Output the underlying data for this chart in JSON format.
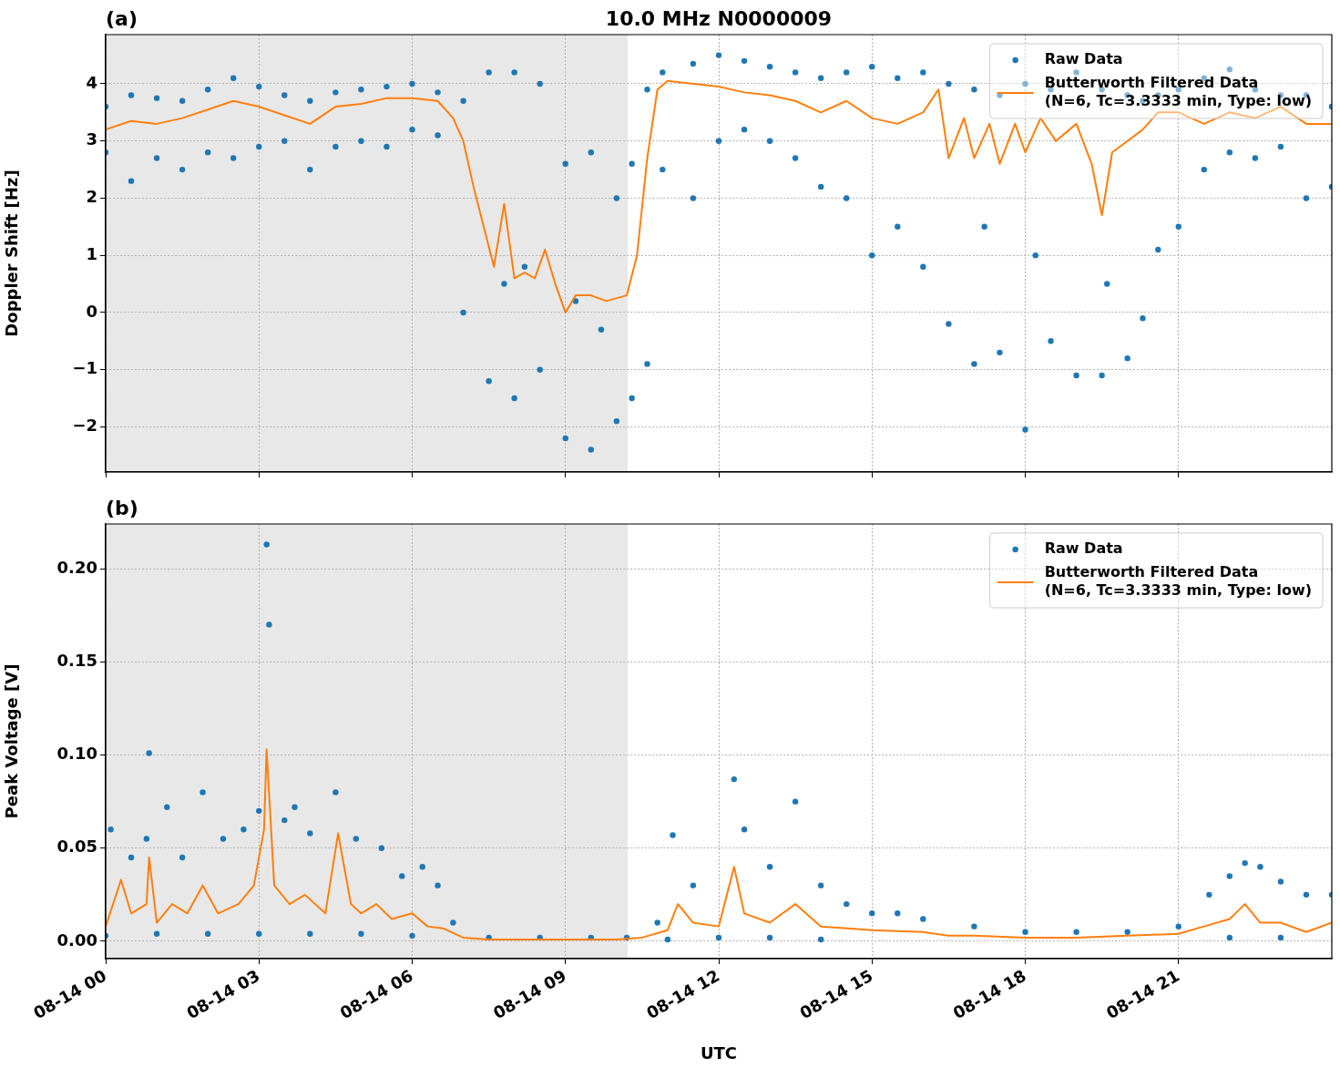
{
  "chart_data": [
    {
      "type": "scatter",
      "title": "10.0 MHz N0000009",
      "ylabel": "Doppler Shift [Hz]",
      "annotations": [
        "(a)"
      ],
      "xlim": [
        "--08-14T00:00",
        "--08-15T00:00"
      ],
      "xticks": [
        {
          "value": "--08-14T00:00",
          "label": null
        },
        {
          "value": "--08-14T03:00",
          "label": null
        },
        {
          "value": "--08-14T06:00",
          "label": null
        },
        {
          "value": "--08-14T09:00",
          "label": null
        },
        {
          "value": "--08-14T12:00",
          "label": null
        },
        {
          "value": "--08-14T15:00",
          "label": null
        },
        {
          "value": "--08-14T18:00",
          "label": null
        },
        {
          "value": "--08-14T21:00",
          "label": null
        }
      ],
      "ylim": [
        -2.79,
        4.86
      ],
      "yticks": [
        {
          "value": -2,
          "label": "−2"
        },
        {
          "value": -1,
          "label": "−1"
        },
        0,
        1,
        2,
        3,
        4
      ],
      "tick_labels": "y",
      "grid": true,
      "legend": "top right",
      "bands": [
        {
          "axis": "x",
          "from": "--08-14T00:00",
          "to": "--08-14T10:13",
          "color": "#e8e8e8"
        }
      ],
      "series": [
        {
          "name": "Raw Data",
          "type": "scatter",
          "marker": "circle",
          "color": "#1f77b4",
          "x": [
            "--08-14T00:00",
            "--08-14T00:00",
            "--08-14T00:30",
            "--08-14T00:30",
            "--08-14T01:00",
            "--08-14T01:00",
            "--08-14T01:30",
            "--08-14T01:30",
            "--08-14T02:00",
            "--08-14T02:00",
            "--08-14T02:30",
            "--08-14T02:30",
            "--08-14T03:00",
            "--08-14T03:00",
            "--08-14T03:30",
            "--08-14T03:30",
            "--08-14T04:00",
            "--08-14T04:00",
            "--08-14T04:30",
            "--08-14T04:30",
            "--08-14T05:00",
            "--08-14T05:00",
            "--08-14T05:30",
            "--08-14T05:30",
            "--08-14T06:00",
            "--08-14T06:00",
            "--08-14T06:30",
            "--08-14T06:30",
            "--08-14T07:00",
            "--08-14T07:00",
            "--08-14T07:30",
            "--08-14T07:30",
            "--08-14T08:00",
            "--08-14T08:00",
            "--08-14T08:30",
            "--08-14T08:30",
            "--08-14T09:00",
            "--08-14T09:00",
            "--08-14T09:30",
            "--08-14T09:30",
            "--08-14T10:00",
            "--08-14T10:00",
            "--08-14T10:18",
            "--08-14T10:18",
            "--08-14T10:36",
            "--08-14T10:36",
            "--08-14T10:54",
            "--08-14T10:54",
            "--08-14T11:30",
            "--08-14T11:30",
            "--08-14T12:00",
            "--08-14T12:00",
            "--08-14T12:30",
            "--08-14T12:30",
            "--08-14T13:00",
            "--08-14T13:00",
            "--08-14T13:30",
            "--08-14T13:30",
            "--08-14T14:00",
            "--08-14T14:00",
            "--08-14T14:30",
            "--08-14T14:30",
            "--08-14T15:00",
            "--08-14T15:00",
            "--08-14T15:30",
            "--08-14T15:30",
            "--08-14T16:00",
            "--08-14T16:00",
            "--08-14T16:30",
            "--08-14T16:30",
            "--08-14T17:00",
            "--08-14T17:00",
            "--08-14T17:30",
            "--08-14T17:30",
            "--08-14T18:00",
            "--08-14T18:00",
            "--08-14T18:30",
            "--08-14T18:30",
            "--08-14T19:00",
            "--08-14T19:00",
            "--08-14T19:30",
            "--08-14T19:30",
            "--08-14T20:00",
            "--08-14T20:00",
            "--08-14T20:18",
            "--08-14T20:18",
            "--08-14T20:36",
            "--08-14T20:36",
            "--08-14T21:00",
            "--08-14T21:00",
            "--08-14T21:30",
            "--08-14T21:30",
            "--08-14T22:00",
            "--08-14T22:00",
            "--08-14T22:30",
            "--08-14T22:30",
            "--08-14T23:00",
            "--08-14T23:00",
            "--08-14T23:30",
            "--08-14T23:30",
            "--08-15T00:00",
            "--08-15T00:00",
            "--08-14T07:48",
            "--08-14T08:12",
            "--08-14T09:12",
            "--08-14T09:42",
            "--08-14T17:12",
            "--08-14T18:12",
            "--08-14T19:36"
          ],
          "values": [
            3.6,
            2.8,
            3.8,
            2.3,
            3.75,
            2.7,
            3.7,
            2.5,
            3.9,
            2.8,
            4.1,
            2.7,
            3.95,
            2.9,
            3.8,
            3.0,
            3.7,
            2.5,
            3.85,
            2.9,
            3.9,
            3.0,
            3.95,
            2.9,
            4.0,
            3.2,
            3.85,
            3.1,
            3.7,
            0.0,
            4.2,
            -1.2,
            4.2,
            -1.5,
            4.0,
            -1.0,
            2.6,
            -2.2,
            2.8,
            -2.4,
            2.0,
            -1.9,
            2.6,
            -1.5,
            3.9,
            -0.9,
            4.2,
            2.5,
            4.35,
            2.0,
            4.5,
            3.0,
            4.4,
            3.2,
            4.3,
            3.0,
            4.2,
            2.7,
            4.1,
            2.2,
            4.2,
            2.0,
            4.3,
            1.0,
            4.1,
            1.5,
            4.2,
            0.8,
            4.0,
            -0.2,
            3.9,
            -0.9,
            3.8,
            -0.7,
            4.0,
            -2.05,
            3.9,
            -0.5,
            4.2,
            -1.1,
            3.9,
            -1.1,
            3.8,
            -0.8,
            3.7,
            -0.1,
            3.8,
            1.1,
            3.9,
            1.5,
            4.1,
            2.5,
            4.25,
            2.8,
            3.9,
            2.7,
            3.8,
            2.9,
            3.8,
            2.0,
            3.6,
            2.2,
            0.5,
            0.8,
            0.2,
            -0.3,
            1.5,
            1.0,
            0.5
          ]
        },
        {
          "name": "Butterworth Filtered Data\n(N=6, Tc=3.3333 min, Type: low)",
          "type": "line",
          "color": "#ff7f0e",
          "x": [
            "--08-14T00:00",
            "--08-14T00:30",
            "--08-14T01:00",
            "--08-14T01:30",
            "--08-14T02:00",
            "--08-14T02:30",
            "--08-14T03:00",
            "--08-14T03:30",
            "--08-14T04:00",
            "--08-14T04:30",
            "--08-14T05:00",
            "--08-14T05:30",
            "--08-14T06:00",
            "--08-14T06:30",
            "--08-14T06:48",
            "--08-14T07:00",
            "--08-14T07:12",
            "--08-14T07:24",
            "--08-14T07:36",
            "--08-14T07:48",
            "--08-14T08:00",
            "--08-14T08:12",
            "--08-14T08:24",
            "--08-14T08:36",
            "--08-14T08:48",
            "--08-14T09:00",
            "--08-14T09:12",
            "--08-14T09:30",
            "--08-14T09:48",
            "--08-14T10:12",
            "--08-14T10:24",
            "--08-14T10:36",
            "--08-14T10:48",
            "--08-14T11:00",
            "--08-14T11:30",
            "--08-14T12:00",
            "--08-14T12:30",
            "--08-14T13:00",
            "--08-14T13:30",
            "--08-14T14:00",
            "--08-14T14:30",
            "--08-14T15:00",
            "--08-14T15:30",
            "--08-14T16:00",
            "--08-14T16:18",
            "--08-14T16:30",
            "--08-14T16:48",
            "--08-14T17:00",
            "--08-14T17:18",
            "--08-14T17:30",
            "--08-14T17:48",
            "--08-14T18:00",
            "--08-14T18:18",
            "--08-14T18:36",
            "--08-14T19:00",
            "--08-14T19:18",
            "--08-14T19:30",
            "--08-14T19:42",
            "--08-14T20:00",
            "--08-14T20:18",
            "--08-14T20:36",
            "--08-14T21:00",
            "--08-14T21:30",
            "--08-14T22:00",
            "--08-14T22:30",
            "--08-14T23:00",
            "--08-14T23:30",
            "--08-15T00:00"
          ],
          "values": [
            3.2,
            3.35,
            3.3,
            3.4,
            3.55,
            3.7,
            3.6,
            3.45,
            3.3,
            3.6,
            3.65,
            3.75,
            3.75,
            3.7,
            3.4,
            3.0,
            2.2,
            1.5,
            0.8,
            1.9,
            0.6,
            0.7,
            0.6,
            1.1,
            0.5,
            0.0,
            0.3,
            0.3,
            0.2,
            0.3,
            1.0,
            2.7,
            3.9,
            4.05,
            4.0,
            3.95,
            3.85,
            3.8,
            3.7,
            3.5,
            3.7,
            3.4,
            3.3,
            3.5,
            3.9,
            2.7,
            3.4,
            2.7,
            3.3,
            2.6,
            3.3,
            2.8,
            3.4,
            3.0,
            3.3,
            2.6,
            1.7,
            2.8,
            3.0,
            3.2,
            3.5,
            3.5,
            3.3,
            3.5,
            3.4,
            3.6,
            3.3,
            3.3
          ]
        }
      ]
    },
    {
      "type": "scatter",
      "xlabel": "UTC",
      "ylabel": "Peak Voltage [V]",
      "annotations": [
        "(b)"
      ],
      "xlim": [
        "--08-14T00:00",
        "--08-15T00:00"
      ],
      "xticks": [
        {
          "value": "--08-14T00:00",
          "label": "08-14 00"
        },
        {
          "value": "--08-14T03:00",
          "label": "08-14 03"
        },
        {
          "value": "--08-14T06:00",
          "label": "08-14 06"
        },
        {
          "value": "--08-14T09:00",
          "label": "08-14 09"
        },
        {
          "value": "--08-14T12:00",
          "label": "08-14 12"
        },
        {
          "value": "--08-14T15:00",
          "label": "08-14 15"
        },
        {
          "value": "--08-14T18:00",
          "label": "08-14 18"
        },
        {
          "value": "--08-14T21:00",
          "label": "08-14 21"
        }
      ],
      "ylim": [
        -0.0093,
        0.224
      ],
      "yticks": [
        {
          "value": 0,
          "label": "0.00"
        },
        {
          "value": 0.05,
          "label": "0.05"
        },
        {
          "value": 0.1,
          "label": "0.10"
        },
        {
          "value": 0.15,
          "label": "0.15"
        },
        {
          "value": 0.2,
          "label": "0.20"
        }
      ],
      "grid": true,
      "legend": "top right",
      "bands": [
        {
          "axis": "x",
          "from": "--08-14T00:00",
          "to": "--08-14T10:13",
          "color": "#e8e8e8"
        }
      ],
      "series": [
        {
          "name": "Raw Data",
          "type": "scatter",
          "marker": "circle",
          "color": "#1f77b4",
          "x": [
            "--08-14T00:06",
            "--08-14T00:30",
            "--08-14T00:48",
            "--08-14T00:51",
            "--08-14T01:12",
            "--08-14T01:30",
            "--08-14T01:54",
            "--08-14T02:18",
            "--08-14T02:42",
            "--08-14T03:00",
            "--08-14T03:09",
            "--08-14T03:12",
            "--08-14T03:30",
            "--08-14T03:42",
            "--08-14T04:00",
            "--08-14T04:30",
            "--08-14T04:54",
            "--08-14T05:24",
            "--08-14T05:48",
            "--08-14T06:12",
            "--08-14T06:30",
            "--08-14T06:48",
            "--08-14T07:30",
            "--08-14T08:30",
            "--08-14T09:30",
            "--08-14T10:12",
            "--08-14T10:48",
            "--08-14T11:06",
            "--08-14T11:30",
            "--08-14T12:18",
            "--08-14T12:30",
            "--08-14T13:00",
            "--08-14T13:30",
            "--08-14T14:00",
            "--08-14T14:30",
            "--08-14T15:00",
            "--08-14T15:30",
            "--08-14T16:00",
            "--08-14T17:00",
            "--08-14T18:00",
            "--08-14T19:00",
            "--08-14T20:00",
            "--08-14T21:00",
            "--08-14T21:36",
            "--08-14T22:00",
            "--08-14T22:18",
            "--08-14T22:36",
            "--08-14T23:00",
            "--08-14T23:30",
            "--08-15T00:00",
            "--08-14T00:00",
            "--08-14T01:00",
            "--08-14T02:00",
            "--08-14T03:00",
            "--08-14T04:00",
            "--08-14T05:00",
            "--08-14T06:00",
            "--08-14T11:00",
            "--08-14T12:00",
            "--08-14T13:00",
            "--08-14T14:00",
            "--08-14T22:00",
            "--08-14T23:00"
          ],
          "values": [
            0.06,
            0.045,
            0.055,
            0.101,
            0.072,
            0.045,
            0.08,
            0.055,
            0.06,
            0.07,
            0.213,
            0.17,
            0.065,
            0.072,
            0.058,
            0.08,
            0.055,
            0.05,
            0.035,
            0.04,
            0.03,
            0.01,
            0.002,
            0.002,
            0.002,
            0.002,
            0.01,
            0.057,
            0.03,
            0.087,
            0.06,
            0.04,
            0.075,
            0.03,
            0.02,
            0.015,
            0.015,
            0.012,
            0.008,
            0.005,
            0.005,
            0.005,
            0.008,
            0.025,
            0.035,
            0.042,
            0.04,
            0.032,
            0.025,
            0.025,
            0.003,
            0.004,
            0.004,
            0.004,
            0.004,
            0.004,
            0.003,
            0.001,
            0.002,
            0.002,
            0.001,
            0.002,
            0.002
          ]
        },
        {
          "name": "Butterworth Filtered Data\n(N=6, Tc=3.3333 min, Type: low)",
          "type": "line",
          "color": "#ff7f0e",
          "x": [
            "--08-14T00:00",
            "--08-14T00:18",
            "--08-14T00:30",
            "--08-14T00:48",
            "--08-14T00:51",
            "--08-14T01:00",
            "--08-14T01:18",
            "--08-14T01:36",
            "--08-14T01:54",
            "--08-14T02:12",
            "--08-14T02:36",
            "--08-14T02:54",
            "--08-14T03:06",
            "--08-14T03:09",
            "--08-14T03:18",
            "--08-14T03:36",
            "--08-14T03:54",
            "--08-14T04:18",
            "--08-14T04:33",
            "--08-14T04:48",
            "--08-14T05:00",
            "--08-14T05:18",
            "--08-14T05:36",
            "--08-14T06:00",
            "--08-14T06:18",
            "--08-14T06:36",
            "--08-14T07:00",
            "--08-14T07:30",
            "--08-14T08:00",
            "--08-14T09:00",
            "--08-14T10:00",
            "--08-14T10:30",
            "--08-14T11:00",
            "--08-14T11:12",
            "--08-14T11:30",
            "--08-14T12:00",
            "--08-14T12:18",
            "--08-14T12:30",
            "--08-14T13:00",
            "--08-14T13:30",
            "--08-14T14:00",
            "--08-14T15:00",
            "--08-14T16:00",
            "--08-14T16:30",
            "--08-14T17:00",
            "--08-14T18:00",
            "--08-14T19:00",
            "--08-14T20:00",
            "--08-14T21:00",
            "--08-14T21:30",
            "--08-14T22:00",
            "--08-14T22:18",
            "--08-14T22:36",
            "--08-14T23:00",
            "--08-14T23:30",
            "--08-15T00:00"
          ],
          "values": [
            0.008,
            0.033,
            0.015,
            0.02,
            0.045,
            0.01,
            0.02,
            0.015,
            0.03,
            0.015,
            0.02,
            0.03,
            0.06,
            0.103,
            0.03,
            0.02,
            0.025,
            0.015,
            0.058,
            0.02,
            0.015,
            0.02,
            0.012,
            0.015,
            0.008,
            0.007,
            0.002,
            0.001,
            0.001,
            0.001,
            0.001,
            0.002,
            0.006,
            0.02,
            0.01,
            0.008,
            0.04,
            0.015,
            0.01,
            0.02,
            0.008,
            0.006,
            0.005,
            0.003,
            0.003,
            0.002,
            0.002,
            0.003,
            0.004,
            0.008,
            0.012,
            0.02,
            0.01,
            0.01,
            0.005,
            0.01
          ]
        }
      ]
    }
  ]
}
